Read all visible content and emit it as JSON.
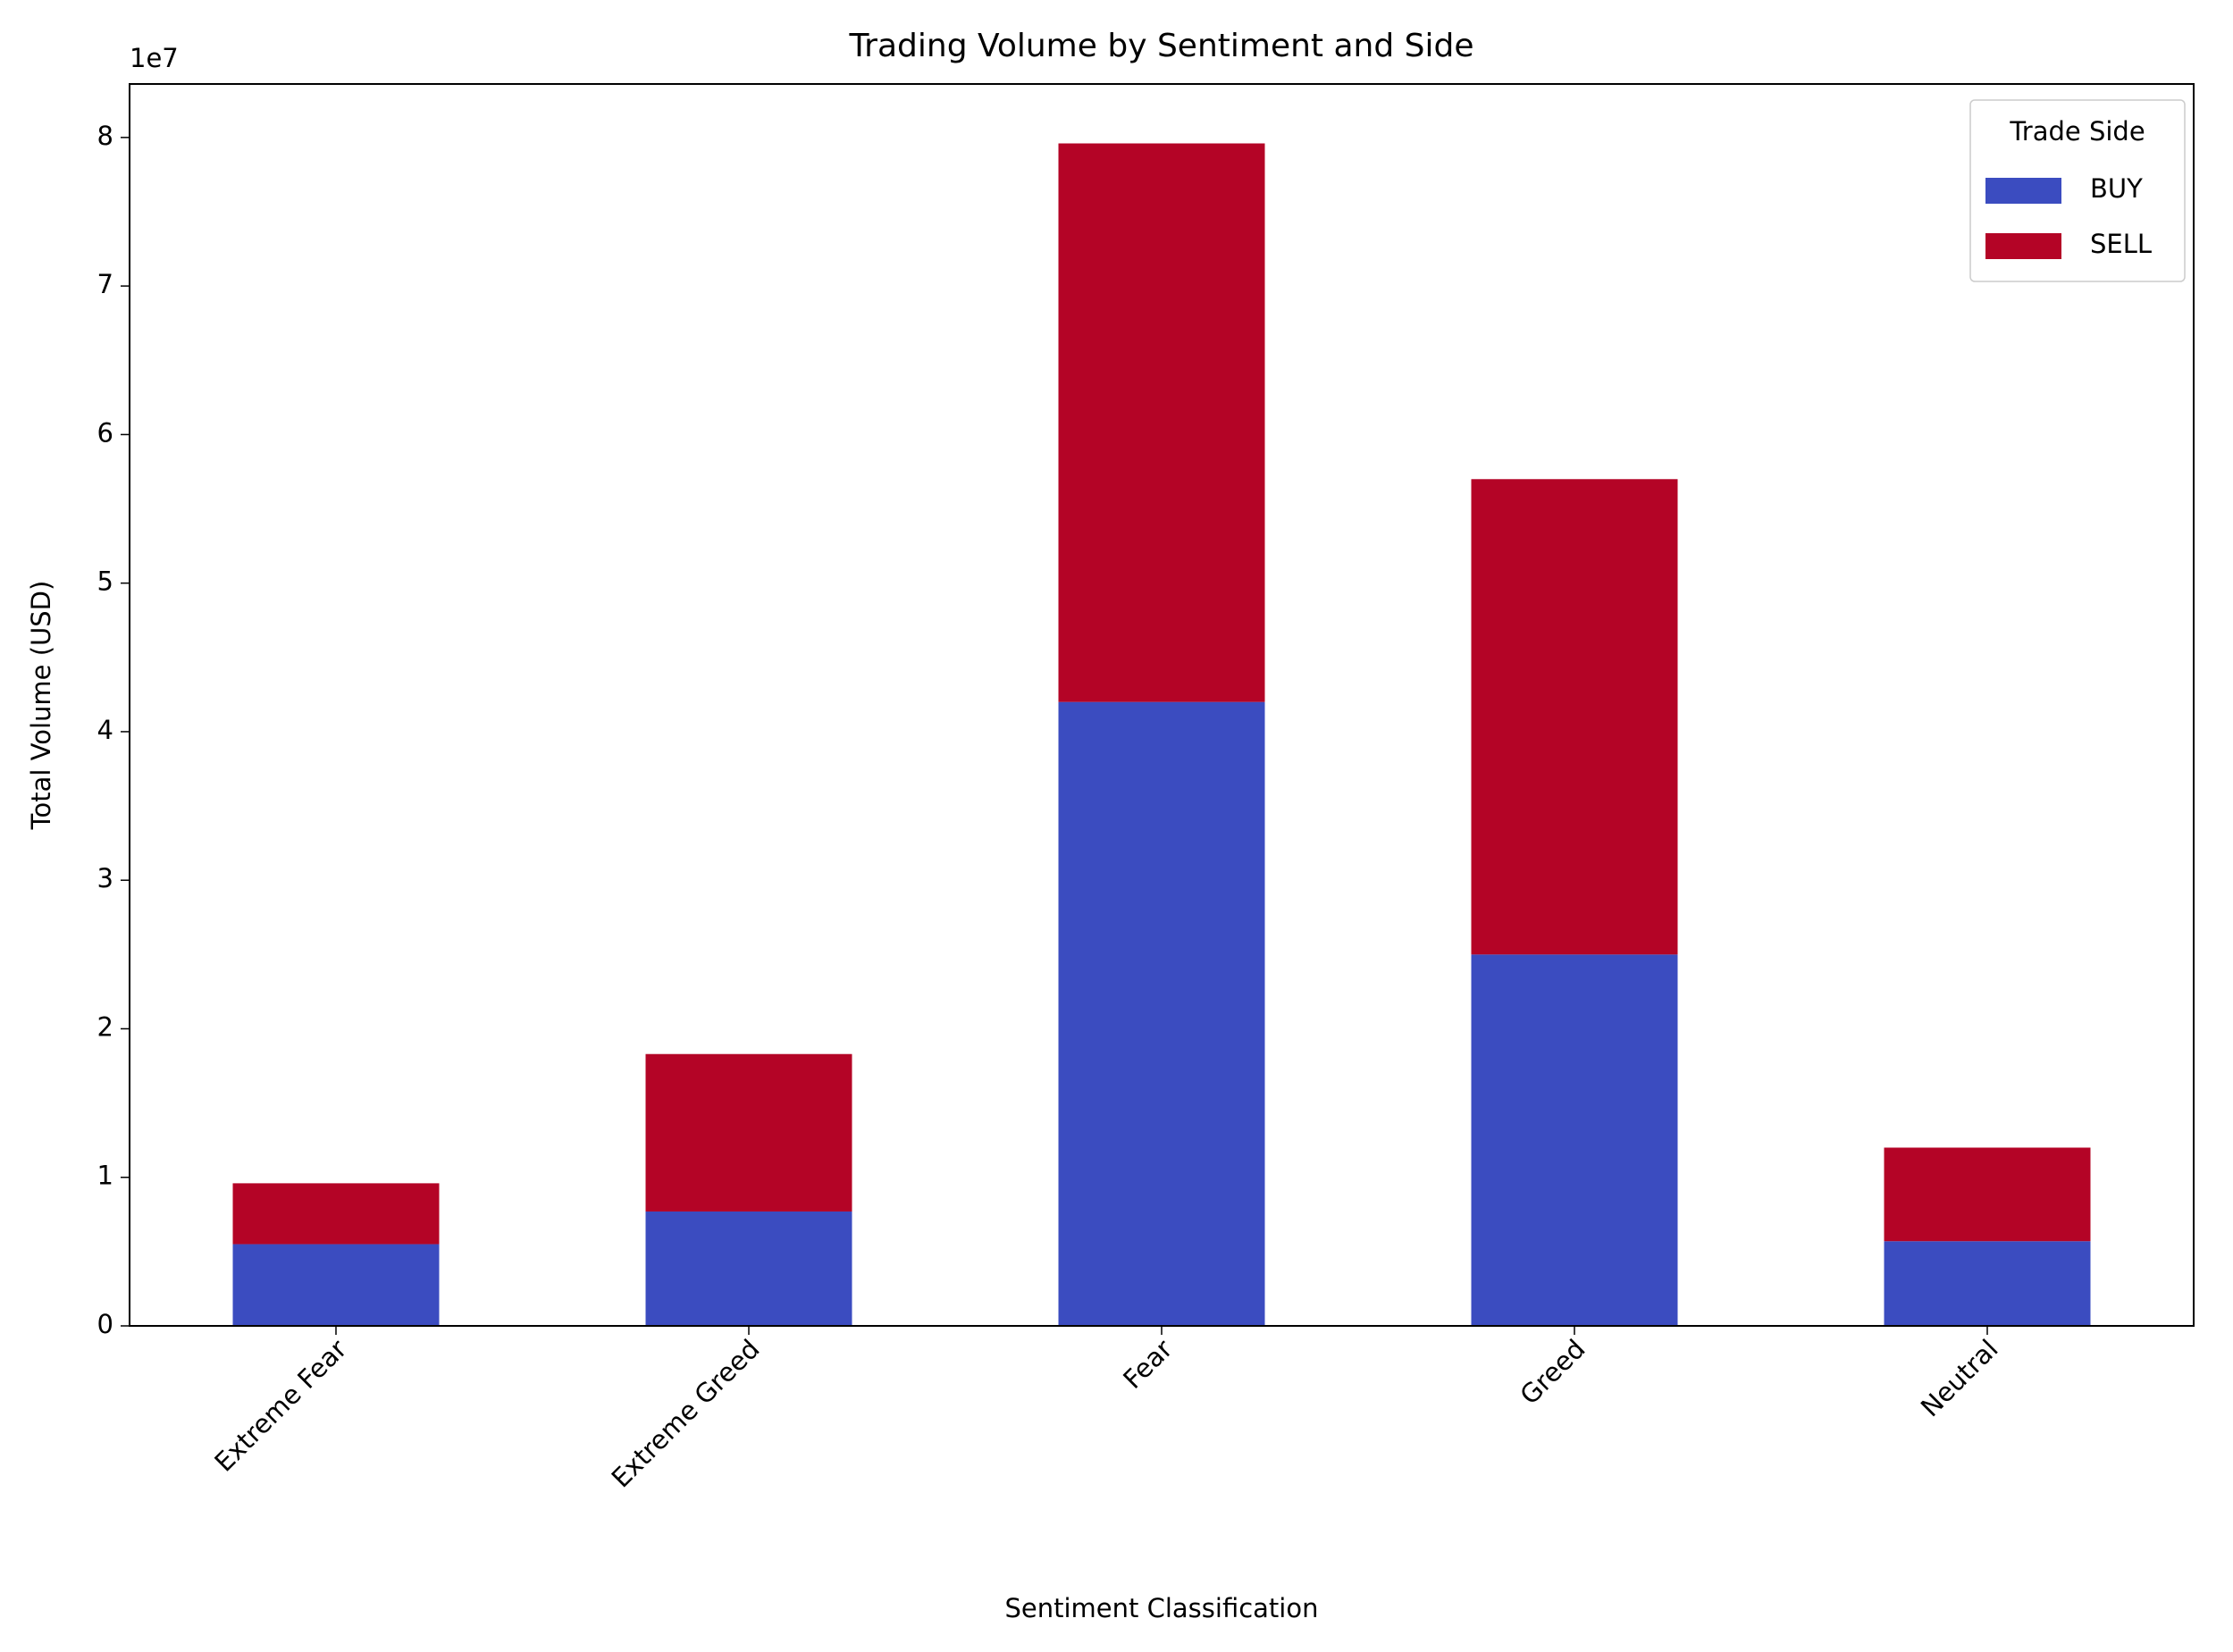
{
  "chart_data": {
    "type": "stacked_bar",
    "title": "Trading Volume by Sentiment and Side",
    "xlabel": "Sentiment Classification",
    "ylabel": "Total Volume (USD)",
    "y_offset_label": "1e7",
    "categories": [
      "Extreme Fear",
      "Extreme Greed",
      "Fear",
      "Greed",
      "Neutral"
    ],
    "series": [
      {
        "name": "BUY",
        "color": "#3b4cc0",
        "values": [
          0.55,
          0.77,
          4.2,
          2.5,
          0.57
        ]
      },
      {
        "name": "SELL",
        "color": "#b40426",
        "values": [
          0.41,
          1.06,
          3.76,
          3.2,
          0.63
        ]
      }
    ],
    "ylim": [
      0,
      8.36
    ],
    "yticks": [
      0,
      1,
      2,
      3,
      4,
      5,
      6,
      7,
      8
    ],
    "legend_title": "Trade Side",
    "legend_loc": "upper right",
    "grid": false
  }
}
